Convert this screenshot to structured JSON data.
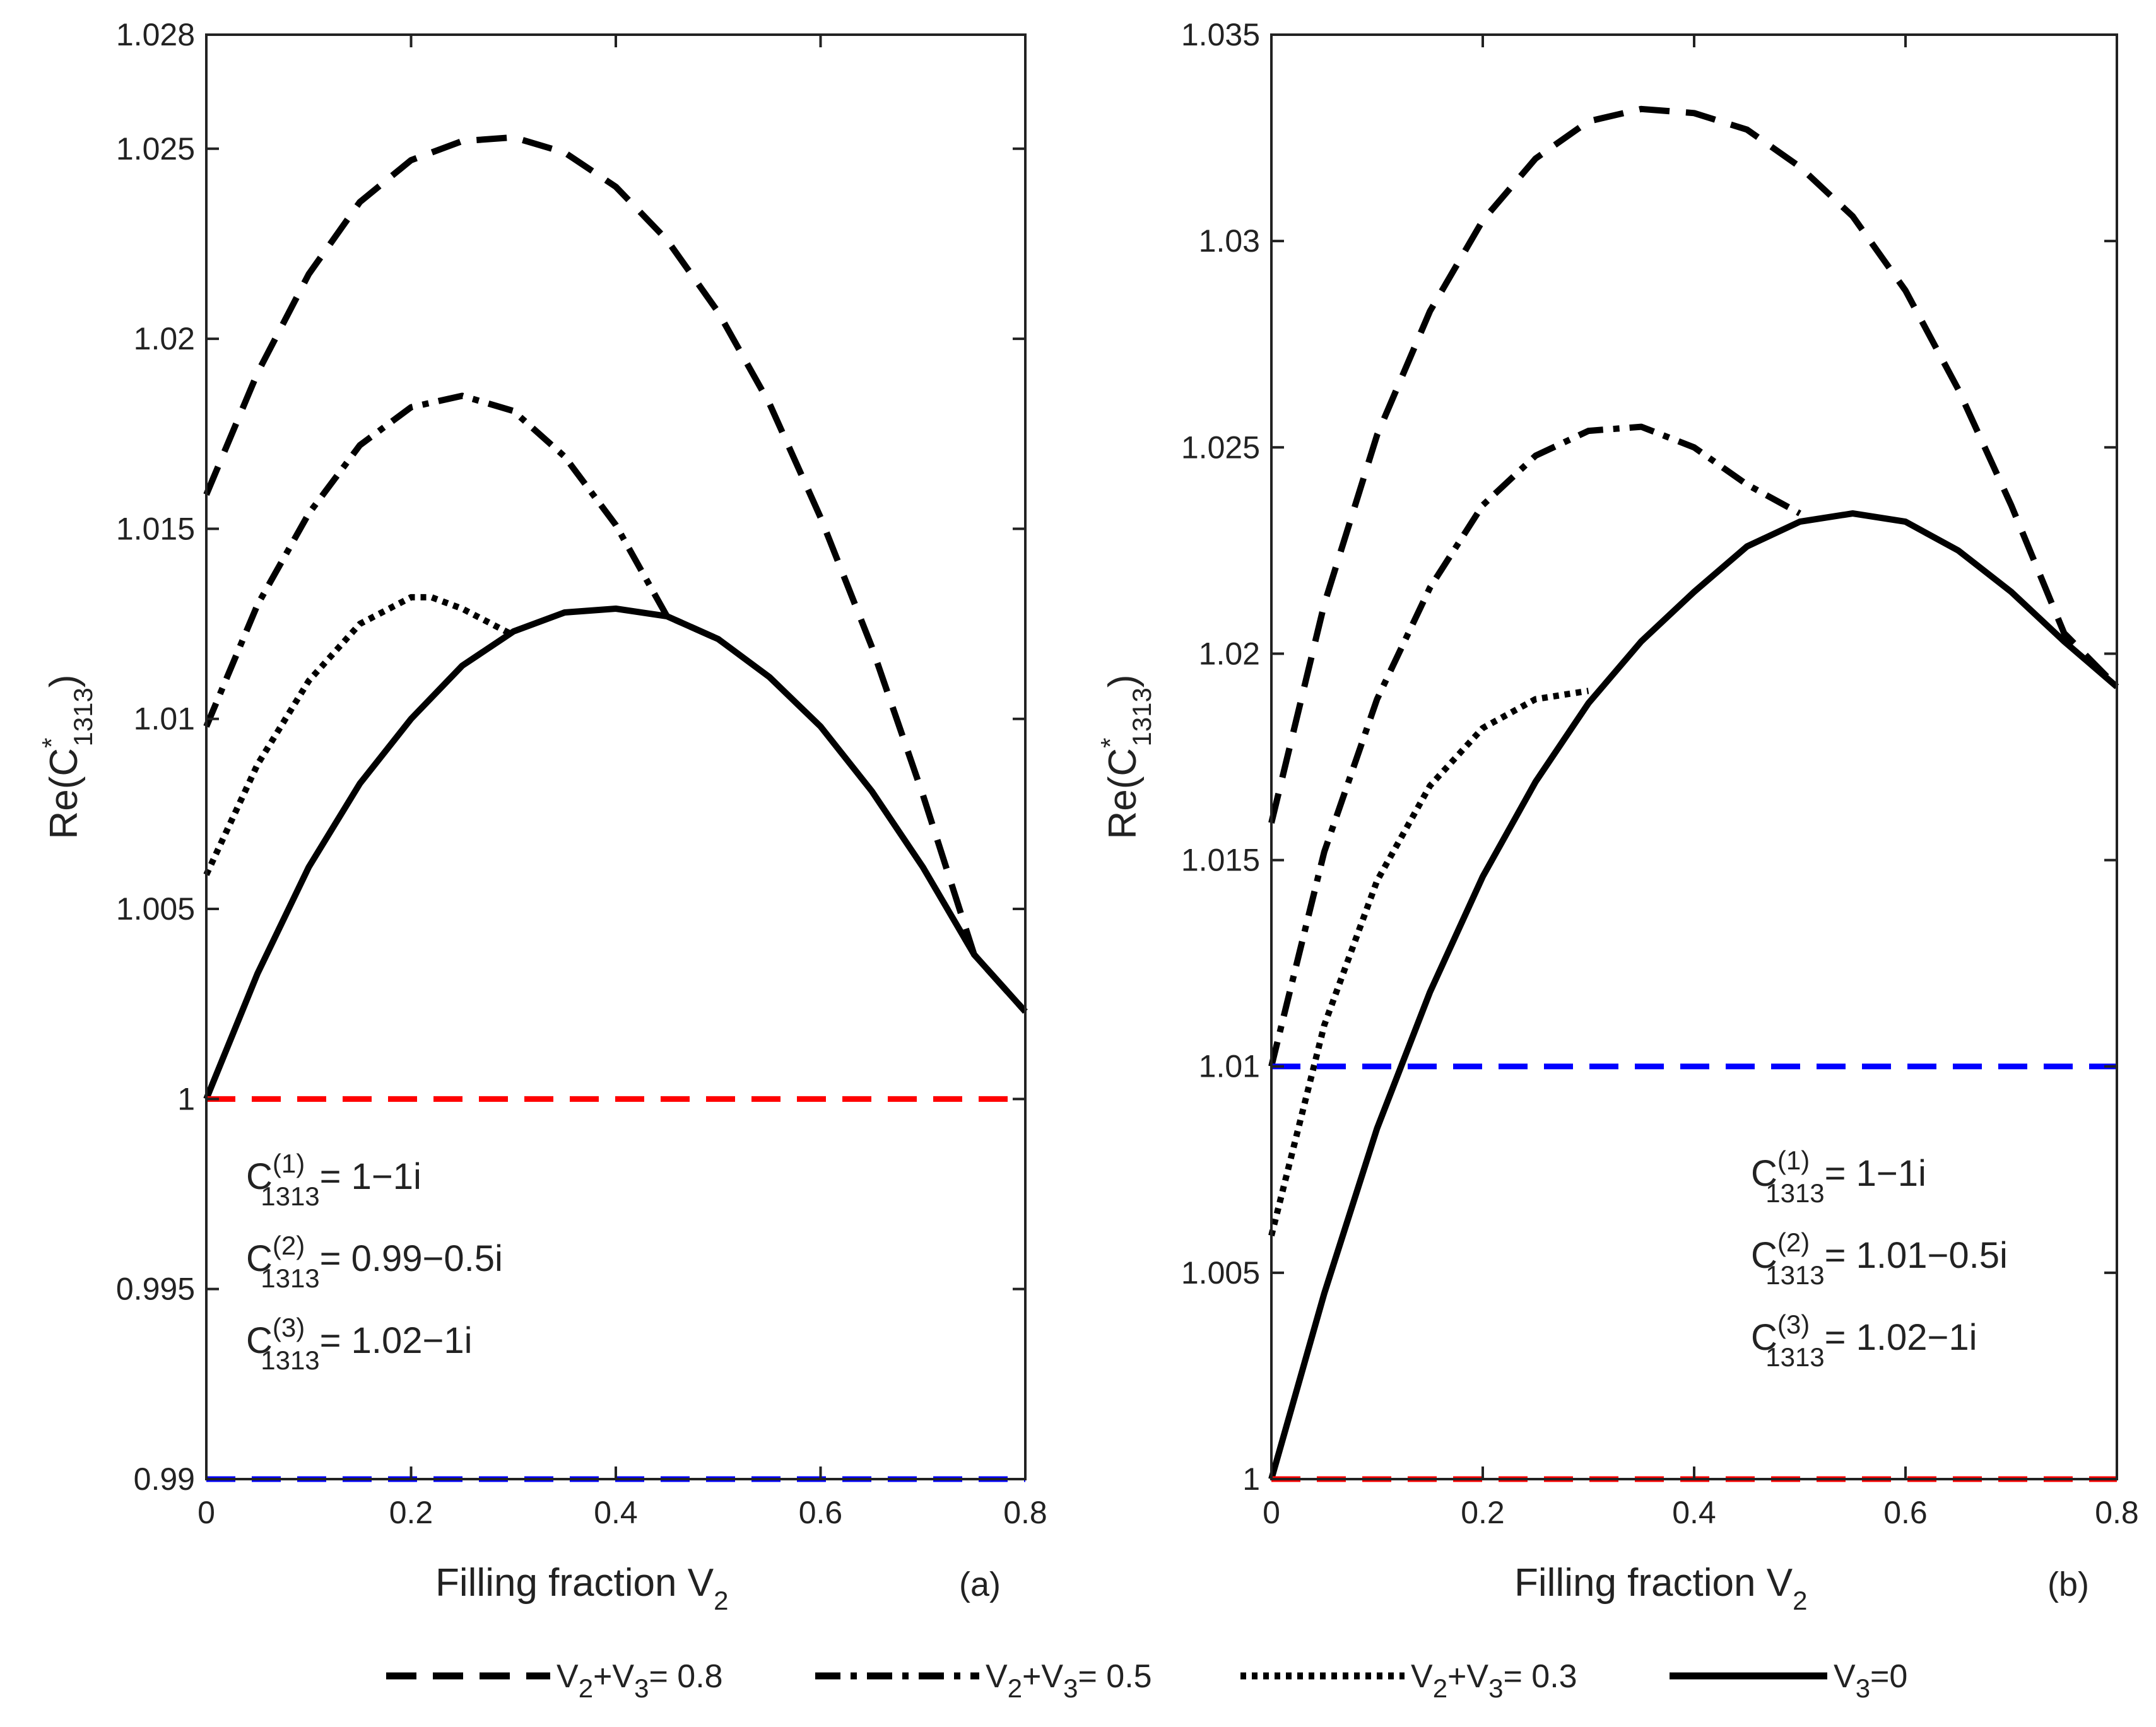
{
  "figure": {
    "legend": [
      {
        "id": "s08",
        "label_main": "V",
        "label_sub1": "2",
        "label_mid": "+V",
        "label_sub2": "3",
        "label_tail": "= 0.8",
        "dash": "dashed"
      },
      {
        "id": "s05",
        "label_main": "V",
        "label_sub1": "2",
        "label_mid": "+V",
        "label_sub2": "3",
        "label_tail": "= 0.5",
        "dash": "dashdot"
      },
      {
        "id": "s03",
        "label_main": "V",
        "label_sub1": "2",
        "label_mid": "+V",
        "label_sub2": "3",
        "label_tail": "= 0.3",
        "dash": "dotted"
      },
      {
        "id": "s00",
        "label_main": "V",
        "label_sub1": "3",
        "label_mid": "",
        "label_sub2": "",
        "label_tail": "=0",
        "dash": "solid"
      }
    ]
  },
  "chart_data": [
    {
      "type": "line",
      "panel_label": "(a)",
      "xlabel_main": "Filling fraction V",
      "xlabel_sub": "2",
      "ylabel_main": "Re(C",
      "ylabel_sup": "*",
      "ylabel_sub": "1313",
      "ylabel_close": ")",
      "xlim": [
        0,
        0.8
      ],
      "ylim": [
        0.99,
        1.028
      ],
      "xticks": [
        0,
        0.2,
        0.4,
        0.6,
        0.8
      ],
      "xtick_labels": [
        "0",
        "0.2",
        "0.4",
        "0.6",
        "0.8"
      ],
      "yticks": [
        0.99,
        0.995,
        1,
        1.005,
        1.01,
        1.015,
        1.02,
        1.025,
        1.028
      ],
      "ytick_labels": [
        "0.99",
        "0.995",
        "1",
        "1.005",
        "1.01",
        "1.015",
        "1.02",
        "1.025",
        "1.028"
      ],
      "grid": false,
      "series": [
        {
          "name": "V2+V3= 0.8",
          "style": "dashed",
          "color": "#000000",
          "x": [
            0,
            0.05,
            0.1,
            0.15,
            0.2,
            0.25,
            0.3,
            0.35,
            0.4,
            0.45,
            0.5,
            0.55,
            0.6,
            0.65,
            0.7,
            0.75,
            0.8
          ],
          "y": [
            1.0159,
            1.0191,
            1.0217,
            1.0236,
            1.0247,
            1.0252,
            1.0253,
            1.0249,
            1.024,
            1.0226,
            1.0207,
            1.0183,
            1.0153,
            1.0119,
            1.008,
            1.0038,
            1.0023
          ]
        },
        {
          "name": "V2+V3= 0.5",
          "style": "dashdot",
          "color": "#000000",
          "x": [
            0,
            0.05,
            0.1,
            0.15,
            0.2,
            0.25,
            0.3,
            0.35,
            0.4,
            0.45,
            0.5
          ],
          "y": [
            1.0098,
            1.013,
            1.0154,
            1.0172,
            1.0182,
            1.0185,
            1.0181,
            1.0169,
            1.0151,
            1.0127,
            1.0121
          ]
        },
        {
          "name": "V2+V3= 0.3",
          "style": "dotted",
          "color": "#000000",
          "x": [
            0,
            0.05,
            0.1,
            0.15,
            0.2,
            0.22,
            0.25,
            0.3
          ],
          "y": [
            1.0059,
            1.0088,
            1.011,
            1.0125,
            1.0132,
            1.0132,
            1.0129,
            1.0122
          ]
        },
        {
          "name": "V3=0",
          "style": "solid",
          "color": "#000000",
          "x": [
            0,
            0.05,
            0.1,
            0.15,
            0.2,
            0.25,
            0.3,
            0.35,
            0.4,
            0.45,
            0.5,
            0.55,
            0.6,
            0.65,
            0.7,
            0.75,
            0.8
          ],
          "y": [
            1.0,
            1.0033,
            1.0061,
            1.0083,
            1.01,
            1.0114,
            1.0123,
            1.0128,
            1.0129,
            1.0127,
            1.0121,
            1.0111,
            1.0098,
            1.0081,
            1.0061,
            1.0038,
            1.0023
          ]
        },
        {
          "name": "C(1) reference",
          "style": "dashed",
          "color": "#ff0000",
          "x": [
            0,
            0.8
          ],
          "y": [
            1.0,
            1.0
          ]
        },
        {
          "name": "C(2) reference",
          "style": "dashed",
          "color": "#0000ff",
          "x": [
            0,
            0.8
          ],
          "y": [
            0.99,
            0.99
          ]
        }
      ],
      "annotations": [
        {
          "C": "C",
          "sup": "(1)",
          "sub": "1313",
          "value": "= 1−1i"
        },
        {
          "C": "C",
          "sup": "(2)",
          "sub": "1313",
          "value": "= 0.99−0.5i"
        },
        {
          "C": "C",
          "sup": "(3)",
          "sub": "1313",
          "value": "= 1.02−1i"
        }
      ]
    },
    {
      "type": "line",
      "panel_label": "(b)",
      "xlabel_main": "Filling fraction V",
      "xlabel_sub": "2",
      "ylabel_main": "Re(C",
      "ylabel_sup": "*",
      "ylabel_sub": "1313",
      "ylabel_close": ")",
      "xlim": [
        0,
        0.8
      ],
      "ylim": [
        1,
        1.035
      ],
      "xticks": [
        0,
        0.2,
        0.4,
        0.6,
        0.8
      ],
      "xtick_labels": [
        "0",
        "0.2",
        "0.4",
        "0.6",
        "0.8"
      ],
      "yticks": [
        1,
        1.005,
        1.01,
        1.015,
        1.02,
        1.025,
        1.03,
        1.035
      ],
      "ytick_labels": [
        "1",
        "1.005",
        "1.01",
        "1.015",
        "1.02",
        "1.025",
        "1.03",
        "1.035"
      ],
      "grid": false,
      "series": [
        {
          "name": "V2+V3= 0.8",
          "style": "dashed",
          "color": "#000000",
          "x": [
            0,
            0.05,
            0.1,
            0.15,
            0.2,
            0.25,
            0.3,
            0.35,
            0.4,
            0.45,
            0.5,
            0.55,
            0.6,
            0.65,
            0.7,
            0.75,
            0.8
          ],
          "y": [
            1.0159,
            1.0212,
            1.0253,
            1.0283,
            1.0305,
            1.032,
            1.0329,
            1.0332,
            1.0331,
            1.0327,
            1.0318,
            1.0306,
            1.0288,
            1.0264,
            1.0236,
            1.0205,
            1.0192
          ]
        },
        {
          "name": "V2+V3= 0.5",
          "style": "dashdot",
          "color": "#000000",
          "x": [
            0,
            0.05,
            0.1,
            0.15,
            0.2,
            0.25,
            0.3,
            0.35,
            0.4,
            0.45,
            0.5
          ],
          "y": [
            1.01,
            1.0152,
            1.0189,
            1.0216,
            1.0236,
            1.0248,
            1.0254,
            1.0255,
            1.025,
            1.0241,
            1.0234
          ]
        },
        {
          "name": "V2+V3= 0.3",
          "style": "dotted",
          "color": "#000000",
          "x": [
            0,
            0.05,
            0.1,
            0.15,
            0.2,
            0.25,
            0.3
          ],
          "y": [
            1.0059,
            1.011,
            1.0145,
            1.0168,
            1.0182,
            1.0189,
            1.0191
          ]
        },
        {
          "name": "V3=0",
          "style": "solid",
          "color": "#000000",
          "x": [
            0,
            0.05,
            0.1,
            0.15,
            0.2,
            0.25,
            0.3,
            0.35,
            0.4,
            0.45,
            0.5,
            0.55,
            0.6,
            0.65,
            0.7,
            0.75,
            0.8
          ],
          "y": [
            1.0,
            1.0045,
            1.0085,
            1.0118,
            1.0146,
            1.0169,
            1.0188,
            1.0203,
            1.0215,
            1.0226,
            1.0232,
            1.0234,
            1.0232,
            1.0225,
            1.0215,
            1.0203,
            1.0192
          ]
        },
        {
          "name": "C(1) reference",
          "style": "dashed",
          "color": "#ff0000",
          "x": [
            0,
            0.8
          ],
          "y": [
            1.0,
            1.0
          ]
        },
        {
          "name": "C(2) reference",
          "style": "dashed",
          "color": "#0000ff",
          "x": [
            0,
            0.8
          ],
          "y": [
            1.01,
            1.01
          ]
        }
      ],
      "annotations": [
        {
          "C": "C",
          "sup": "(1)",
          "sub": "1313",
          "value": "= 1−1i"
        },
        {
          "C": "C",
          "sup": "(2)",
          "sub": "1313",
          "value": "= 1.01−0.5i"
        },
        {
          "C": "C",
          "sup": "(3)",
          "sub": "1313",
          "value": "= 1.02−1i"
        }
      ]
    }
  ]
}
